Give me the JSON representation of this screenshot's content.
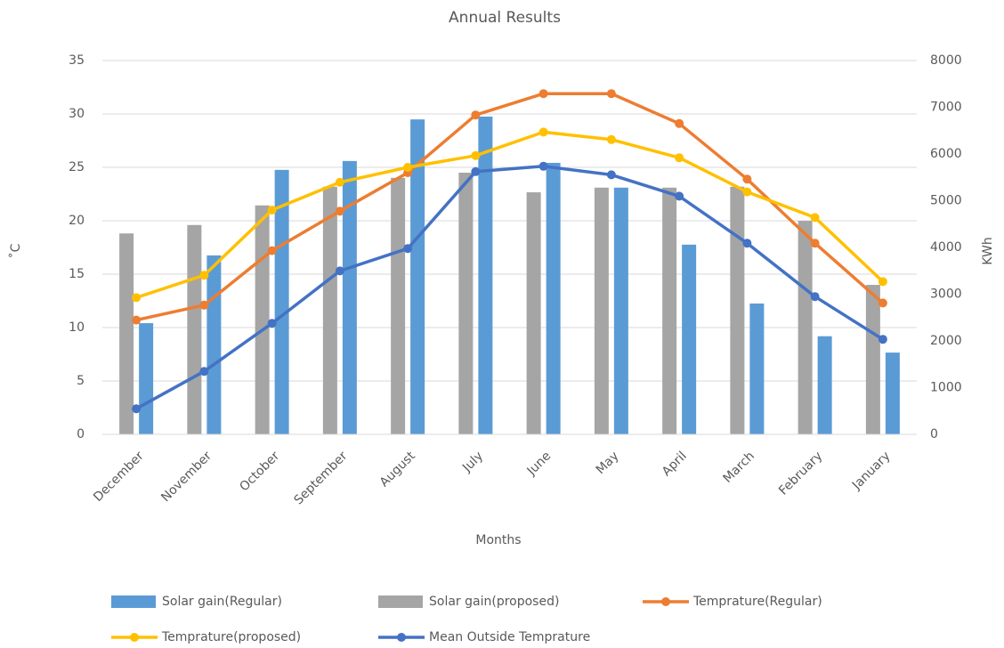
{
  "chart_data": {
    "type": "combo",
    "title": "Annual Results",
    "x_label": "Months",
    "y_label": "˚C",
    "y2_label": "KWh",
    "categories": [
      "December",
      "November",
      "October",
      "September",
      "August",
      "July",
      "June",
      "May",
      "April",
      "March",
      "February",
      "January"
    ],
    "ylim": [
      0,
      35
    ],
    "yticks": [
      0,
      5,
      10,
      15,
      20,
      25,
      30,
      35
    ],
    "y2lim": [
      0,
      8000
    ],
    "y2ticks": [
      0,
      1000,
      2000,
      3000,
      4000,
      5000,
      6000,
      7000,
      8000
    ],
    "grid": true,
    "series": [
      {
        "name": "Solar gain(Regular)",
        "type": "bar",
        "axis": "y2",
        "color": "#5b9bd5",
        "values": [
          2380,
          3830,
          5660,
          5850,
          6740,
          6800,
          5810,
          5280,
          4060,
          2800,
          2100,
          1750
        ]
      },
      {
        "name": "Solar gain(proposed)",
        "type": "bar",
        "axis": "y2",
        "color": "#a5a5a5",
        "values": [
          4300,
          4480,
          4900,
          5300,
          5490,
          5600,
          5180,
          5280,
          5280,
          5300,
          4570,
          3200
        ]
      },
      {
        "name": "Temprature(Regular)",
        "type": "line",
        "color": "#ed7d31",
        "values": [
          10.7,
          12.1,
          17.2,
          20.9,
          24.5,
          29.9,
          31.9,
          31.9,
          29.1,
          23.9,
          17.9,
          12.3
        ]
      },
      {
        "name": "Temprature(proposed)",
        "type": "line",
        "color": "#ffc000",
        "values": [
          12.8,
          14.9,
          21.0,
          23.6,
          25.0,
          26.1,
          28.3,
          27.6,
          25.9,
          22.7,
          20.3,
          14.3
        ]
      },
      {
        "name": "Mean Outside Temprature",
        "type": "line",
        "color": "#4472c4",
        "values": [
          2.4,
          5.9,
          10.4,
          15.3,
          17.4,
          24.6,
          25.1,
          24.3,
          22.3,
          17.9,
          12.9,
          8.9
        ]
      }
    ]
  }
}
